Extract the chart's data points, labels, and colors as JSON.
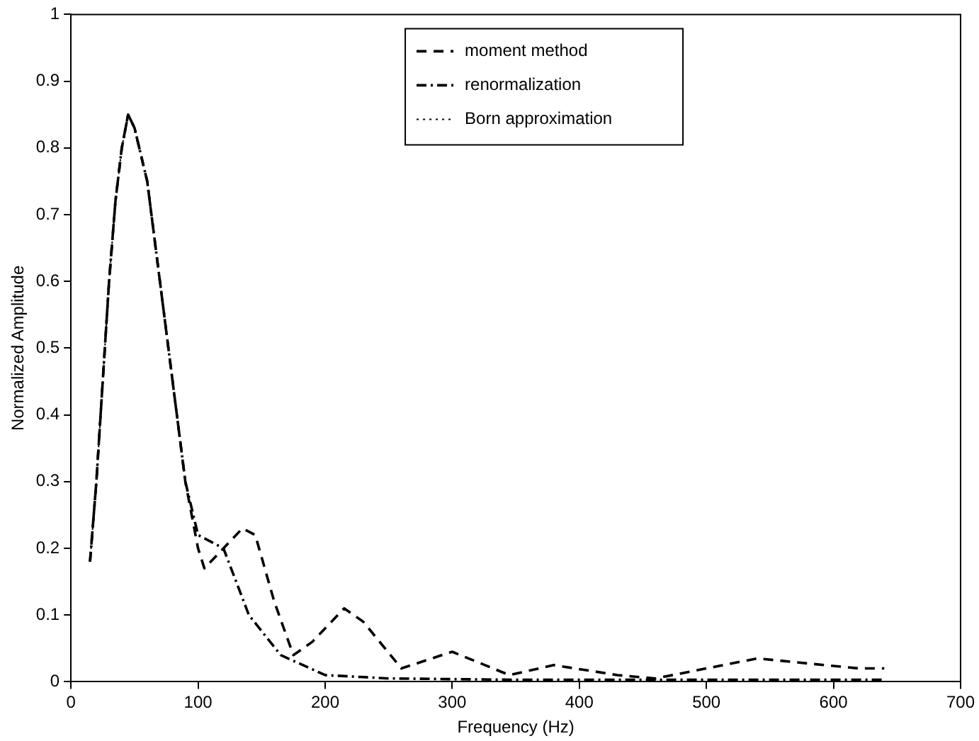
{
  "chart_data": {
    "type": "line",
    "xlabel": "Frequency (Hz)",
    "ylabel": "Normalized Amplitude",
    "xlim": [
      0,
      700
    ],
    "xticks": [
      0,
      100,
      200,
      300,
      400,
      500,
      600,
      700
    ],
    "ylim": [
      0,
      1
    ],
    "yticks": [
      0,
      0.1,
      0.2,
      0.3,
      0.4,
      0.5,
      0.6,
      0.7,
      0.8,
      0.9,
      1
    ],
    "grid": false,
    "legend": "top",
    "marker": "none",
    "series": [
      {
        "name": "moment method",
        "color": "#000000",
        "line_style": "dashed",
        "x": [
          15,
          20,
          25,
          30,
          35,
          40,
          45,
          50,
          60,
          70,
          80,
          90,
          100,
          105,
          120,
          135,
          145,
          160,
          175,
          190,
          215,
          230,
          260,
          300,
          345,
          380,
          430,
          460,
          540,
          620,
          640
        ],
        "values": [
          0.18,
          0.3,
          0.45,
          0.6,
          0.72,
          0.8,
          0.85,
          0.83,
          0.75,
          0.6,
          0.45,
          0.3,
          0.2,
          0.17,
          0.2,
          0.23,
          0.22,
          0.12,
          0.04,
          0.06,
          0.11,
          0.09,
          0.02,
          0.045,
          0.01,
          0.025,
          0.01,
          0.005,
          0.035,
          0.02,
          0.02
        ]
      },
      {
        "name": "renormalization",
        "color": "#000000",
        "line_style": "dashdot",
        "x": [
          15,
          20,
          25,
          30,
          35,
          40,
          45,
          50,
          60,
          70,
          80,
          90,
          100,
          110,
          120,
          140,
          165,
          200,
          250,
          350,
          450,
          550,
          640
        ],
        "values": [
          0.18,
          0.3,
          0.45,
          0.6,
          0.72,
          0.8,
          0.85,
          0.83,
          0.75,
          0.6,
          0.45,
          0.3,
          0.22,
          0.21,
          0.2,
          0.1,
          0.04,
          0.01,
          0.005,
          0.003,
          0.003,
          0.003,
          0.003
        ]
      },
      {
        "name": "Born approximation",
        "color": "#000000",
        "line_style": "dotted",
        "x": [
          15,
          20,
          25,
          30,
          35,
          40,
          45
        ],
        "values": [
          0.18,
          0.3,
          0.45,
          0.6,
          0.72,
          0.8,
          0.85
        ]
      }
    ]
  }
}
